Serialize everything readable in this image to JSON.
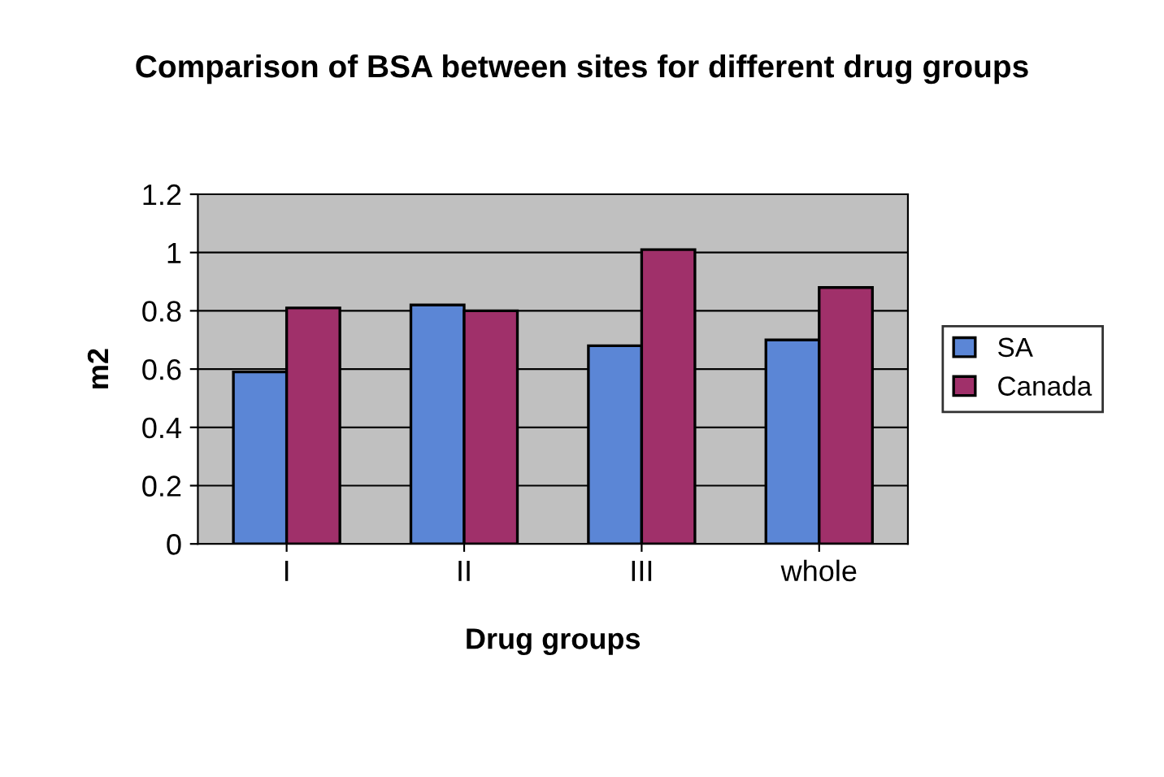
{
  "chart_data": {
    "type": "bar",
    "title": "Comparison of BSA between sites for different drug groups",
    "xlabel": "Drug groups",
    "ylabel": "m2",
    "categories": [
      "I",
      "II",
      "III",
      "whole"
    ],
    "series": [
      {
        "name": "SA",
        "color": "#5b86d6",
        "values": [
          0.59,
          0.82,
          0.68,
          0.7
        ]
      },
      {
        "name": "Canada",
        "color": "#a0306a",
        "values": [
          0.81,
          0.8,
          1.01,
          0.88
        ]
      }
    ],
    "ylim": [
      0,
      1.2
    ],
    "yticks": [
      0,
      0.2,
      0.4,
      0.6,
      0.8,
      1,
      1.2
    ],
    "grid": "y",
    "legend": "right"
  }
}
